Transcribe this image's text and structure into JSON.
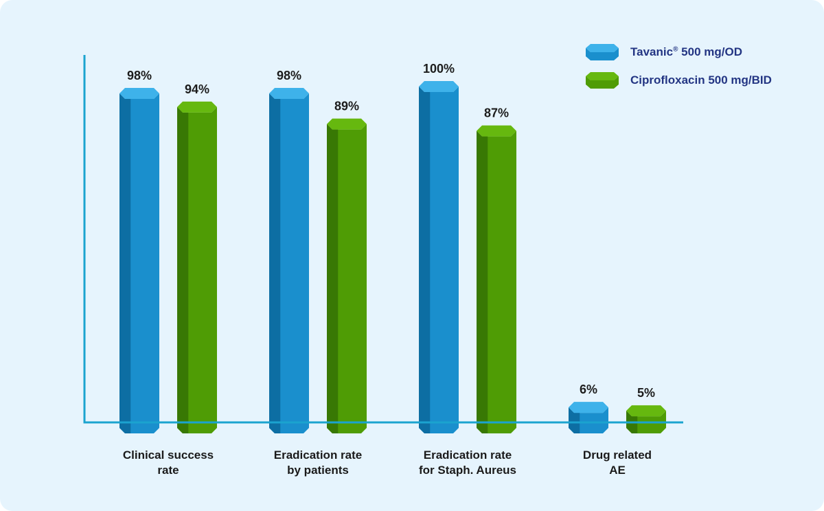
{
  "chart_data": {
    "type": "bar",
    "categories": [
      [
        "Clinical success",
        "rate"
      ],
      [
        "Eradication rate",
        "by patients"
      ],
      [
        "Eradication rate",
        "for Staph. Aureus"
      ],
      [
        "Drug related",
        "AE"
      ]
    ],
    "series": [
      {
        "name_main": "Tavanic",
        "name_sup": "®",
        "name_rest": " 500 mg/OD",
        "values": [
          98,
          98,
          100,
          6
        ],
        "labels": [
          "98%",
          "98%",
          "100%",
          "6%"
        ],
        "colors": {
          "front": "#1a8fcd",
          "side": "#0d6ea3",
          "top": "#3eb2ea"
        }
      },
      {
        "name_main": "Ciprofloxacin 500 mg/BID",
        "name_sup": "",
        "name_rest": "",
        "values": [
          94,
          89,
          87,
          5
        ],
        "labels": [
          "94%",
          "89%",
          "87%",
          "5%"
        ],
        "colors": {
          "front": "#4f9c05",
          "side": "#387804",
          "top": "#66b80f"
        }
      }
    ],
    "ylim": [
      0,
      100
    ],
    "grid": false,
    "legend_position": "top-right",
    "axis_color": "#1ba3cf"
  }
}
